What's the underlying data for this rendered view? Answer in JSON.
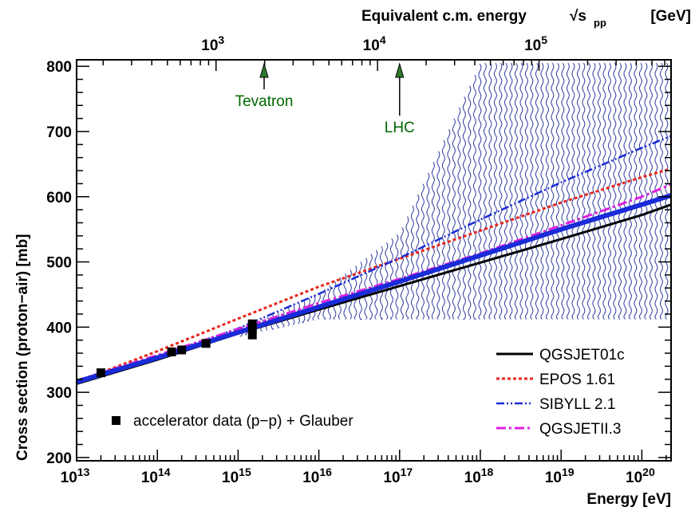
{
  "chart_data": {
    "type": "line",
    "title": "",
    "xlabel": "Energy   [eV]",
    "ylabel": "Cross section (proton−air)   [mb]",
    "top_axis_label": "Equivalent c.m. energy",
    "top_axis_sqrt_symbol": "√s",
    "top_axis_subscript": "pp",
    "top_axis_unit": "[GeV]",
    "xscale": "log",
    "xlim": [
      10000000000000.0,
      2.3e+20
    ],
    "ylim": [
      195,
      810
    ],
    "x_ticks": [
      {
        "value": 10000000000000.0,
        "base": "10",
        "exp": "13"
      },
      {
        "value": 100000000000000.0,
        "base": "10",
        "exp": "14"
      },
      {
        "value": 1000000000000000.0,
        "base": "10",
        "exp": "15"
      },
      {
        "value": 1e+16,
        "base": "10",
        "exp": "16"
      },
      {
        "value": 1e+17,
        "base": "10",
        "exp": "17"
      },
      {
        "value": 1e+18,
        "base": "10",
        "exp": "18"
      },
      {
        "value": 1e+19,
        "base": "10",
        "exp": "19"
      },
      {
        "value": 1e+20,
        "base": "10",
        "exp": "20"
      }
    ],
    "y_ticks": [
      200,
      300,
      400,
      500,
      600,
      700,
      800
    ],
    "top_ticks": [
      {
        "value": 1000.0,
        "base": "10",
        "exp": "3"
      },
      {
        "value": 10000.0,
        "base": "10",
        "exp": "4"
      },
      {
        "value": 100000.0,
        "base": "10",
        "exp": "5"
      }
    ],
    "markers": [
      {
        "label": "Tevatron",
        "x": 2100000000000000.0,
        "color": "#006600"
      },
      {
        "label": "LHC",
        "x": 1e+17,
        "color": "#006600"
      }
    ],
    "band": {
      "color": "#2e3da0",
      "x": [
        1000000000000000.0,
        1e+16,
        1e+17,
        1e+18,
        1e+19,
        1e+20,
        2.3e+20
      ],
      "lower": [
        385,
        412,
        412,
        412,
        412,
        412,
        412
      ],
      "upper": [
        395,
        452,
        545,
        805,
        805,
        805,
        805
      ]
    },
    "series": [
      {
        "name": "QGSJET01c",
        "color": "#000000",
        "dash": "solid",
        "width": 3,
        "x": [
          10000000000000.0,
          100000000000000.0,
          1000000000000000.0,
          1e+16,
          1e+17,
          1e+18,
          1e+19,
          1e+20,
          2.3e+20
        ],
        "y": [
          313,
          350,
          390,
          427,
          463,
          499,
          535,
          572,
          588
        ]
      },
      {
        "name": "EPOS 1.61",
        "color": "#e8261c",
        "dash": "dotted",
        "width": 3,
        "x": [
          10000000000000.0,
          100000000000000.0,
          1000000000000000.0,
          1e+16,
          1e+17,
          1e+18,
          1e+19,
          1e+20,
          2.3e+20
        ],
        "y": [
          316,
          363,
          413,
          462,
          505,
          548,
          591,
          630,
          643
        ]
      },
      {
        "name": "SIBYLL 2.1",
        "color": "#1a2bd8",
        "dash": "dashdotdot",
        "width": 2.5,
        "x": [
          10000000000000.0,
          100000000000000.0,
          1000000000000000.0,
          1e+16,
          1e+17,
          1e+18,
          1e+19,
          1e+20,
          2.3e+20
        ],
        "y": [
          316,
          355,
          398,
          451,
          506,
          565,
          622,
          675,
          693
        ]
      },
      {
        "name": "QGSJETII.3",
        "color": "#e020e0",
        "dash": "dashdot",
        "width": 3,
        "x": [
          10000000000000.0,
          100000000000000.0,
          1000000000000000.0,
          1e+16,
          1e+17,
          1e+18,
          1e+19,
          1e+20,
          2.3e+20
        ],
        "y": [
          318,
          357,
          397,
          437,
          474,
          513,
          556,
          600,
          619
        ]
      },
      {
        "name": "",
        "color": "#1a2bd8",
        "dash": "solid",
        "width": 6,
        "x": [
          10000000000000.0,
          100000000000000.0,
          1000000000000000.0,
          1e+16,
          1e+17,
          1e+18,
          1e+19,
          1e+20,
          2.3e+20
        ],
        "y": [
          316,
          353,
          392,
          431,
          470,
          510,
          550,
          588,
          602
        ]
      }
    ],
    "data_points": {
      "label": "accelerator data (p−p) + Glauber",
      "color": "#000000",
      "points": [
        {
          "x": 20000000000000.0,
          "y": 330
        },
        {
          "x": 150000000000000.0,
          "y": 362
        },
        {
          "x": 200000000000000.0,
          "y": 365
        },
        {
          "x": 400000000000000.0,
          "y": 375
        },
        {
          "x": 1500000000000000.0,
          "y": 388
        },
        {
          "x": 1500000000000000.0,
          "y": 400
        },
        {
          "x": 1500000000000000.0,
          "y": 405
        }
      ]
    },
    "legend_position": "bottom-right",
    "grid": false
  }
}
